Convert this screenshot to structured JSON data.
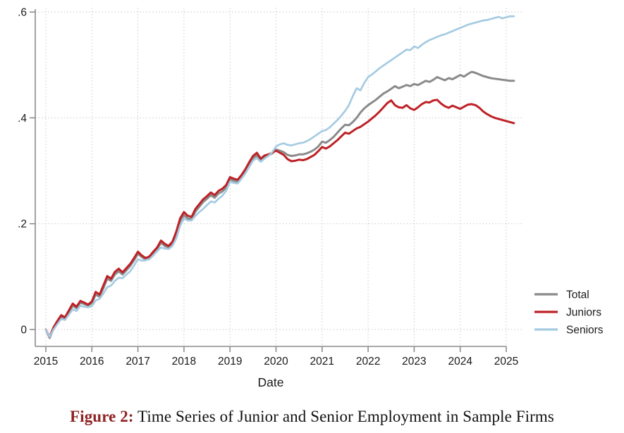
{
  "figure": {
    "caption_label": "Figure 2:",
    "caption_text": " Time Series of Junior and Senior Employment in Sample Firms"
  },
  "colors": {
    "total_line": "#8a8a8a",
    "juniors_line": "#be2126",
    "seniors_line": "#a5cbe2",
    "axis": "#8c8c8c",
    "gridline": "#c9c9c9",
    "tick_label": "#1a1a1a",
    "caption_label": "#8e2424",
    "caption_text": "#131313",
    "background": "#ffffff"
  },
  "chart_data": {
    "type": "line",
    "title": "",
    "xlabel": "Date",
    "ylabel": "",
    "x_start_year": 2015,
    "x_frequency": "monthly",
    "x_end": "2025-03",
    "xlim": [
      2015,
      2025.4
    ],
    "ylim": [
      -0.02,
      0.62
    ],
    "grid": "dotted gridlines at every x and y tick",
    "legend_position": "outside right, lower area, no frame",
    "x_ticks": [
      2015,
      2016,
      2017,
      2018,
      2019,
      2020,
      2021,
      2022,
      2023,
      2024,
      2025
    ],
    "x_tick_labels": [
      "2015",
      "2016",
      "2017",
      "2018",
      "2019",
      "2020",
      "2021",
      "2022",
      "2023",
      "2024",
      "2025"
    ],
    "y_ticks": [
      {
        "value": 0.0,
        "label": "0"
      },
      {
        "value": 0.2,
        "label": ".2"
      },
      {
        "value": 0.4,
        "label": ".4"
      },
      {
        "value": 0.6,
        "label": ".6"
      }
    ],
    "series": [
      {
        "name": "Total",
        "color": "#8a8a8a",
        "stroke_width": 3,
        "values": [
          0.0,
          -0.016,
          0.001,
          0.013,
          0.024,
          0.021,
          0.033,
          0.045,
          0.04,
          0.051,
          0.048,
          0.045,
          0.05,
          0.066,
          0.062,
          0.078,
          0.096,
          0.092,
          0.104,
          0.11,
          0.104,
          0.112,
          0.12,
          0.131,
          0.143,
          0.137,
          0.132,
          0.135,
          0.144,
          0.152,
          0.164,
          0.158,
          0.155,
          0.162,
          0.18,
          0.205,
          0.216,
          0.21,
          0.209,
          0.223,
          0.232,
          0.241,
          0.247,
          0.254,
          0.249,
          0.257,
          0.261,
          0.268,
          0.284,
          0.281,
          0.279,
          0.288,
          0.298,
          0.311,
          0.324,
          0.329,
          0.32,
          0.326,
          0.329,
          0.333,
          0.34,
          0.338,
          0.335,
          0.33,
          0.328,
          0.329,
          0.331,
          0.331,
          0.333,
          0.336,
          0.34,
          0.346,
          0.355,
          0.353,
          0.358,
          0.364,
          0.372,
          0.38,
          0.387,
          0.386,
          0.392,
          0.4,
          0.41,
          0.418,
          0.424,
          0.429,
          0.434,
          0.44,
          0.446,
          0.45,
          0.455,
          0.46,
          0.456,
          0.459,
          0.462,
          0.46,
          0.464,
          0.462,
          0.466,
          0.47,
          0.468,
          0.472,
          0.477,
          0.474,
          0.471,
          0.475,
          0.473,
          0.477,
          0.481,
          0.478,
          0.483,
          0.487,
          0.485,
          0.482,
          0.479,
          0.477,
          0.475,
          0.474,
          0.473,
          0.472,
          0.471,
          0.47,
          0.47
        ]
      },
      {
        "name": "Juniors",
        "color": "#be2126",
        "stroke_width": 3,
        "values": [
          0.0,
          -0.014,
          0.004,
          0.016,
          0.027,
          0.023,
          0.036,
          0.049,
          0.043,
          0.054,
          0.051,
          0.047,
          0.053,
          0.071,
          0.066,
          0.083,
          0.101,
          0.096,
          0.109,
          0.115,
          0.108,
          0.116,
          0.124,
          0.135,
          0.147,
          0.14,
          0.135,
          0.138,
          0.147,
          0.155,
          0.168,
          0.162,
          0.158,
          0.166,
          0.185,
          0.21,
          0.222,
          0.215,
          0.213,
          0.228,
          0.237,
          0.246,
          0.252,
          0.259,
          0.254,
          0.262,
          0.266,
          0.273,
          0.288,
          0.285,
          0.283,
          0.292,
          0.303,
          0.316,
          0.328,
          0.334,
          0.323,
          0.329,
          0.331,
          0.334,
          0.338,
          0.334,
          0.33,
          0.322,
          0.318,
          0.319,
          0.321,
          0.32,
          0.322,
          0.326,
          0.33,
          0.337,
          0.345,
          0.342,
          0.346,
          0.352,
          0.358,
          0.365,
          0.372,
          0.37,
          0.375,
          0.38,
          0.383,
          0.388,
          0.393,
          0.399,
          0.405,
          0.412,
          0.42,
          0.428,
          0.433,
          0.424,
          0.42,
          0.419,
          0.424,
          0.418,
          0.415,
          0.42,
          0.426,
          0.43,
          0.429,
          0.433,
          0.434,
          0.427,
          0.422,
          0.419,
          0.423,
          0.42,
          0.417,
          0.421,
          0.425,
          0.426,
          0.424,
          0.419,
          0.412,
          0.407,
          0.403,
          0.4,
          0.398,
          0.396,
          0.394,
          0.392,
          0.39
        ]
      },
      {
        "name": "Seniors",
        "color": "#a5cbe2",
        "stroke_width": 2.7,
        "values": [
          0.0,
          -0.014,
          0.0,
          0.01,
          0.02,
          0.018,
          0.028,
          0.038,
          0.035,
          0.045,
          0.043,
          0.042,
          0.044,
          0.055,
          0.058,
          0.068,
          0.08,
          0.083,
          0.092,
          0.098,
          0.097,
          0.104,
          0.11,
          0.121,
          0.133,
          0.13,
          0.131,
          0.133,
          0.14,
          0.148,
          0.155,
          0.153,
          0.152,
          0.158,
          0.172,
          0.196,
          0.21,
          0.206,
          0.206,
          0.215,
          0.222,
          0.228,
          0.235,
          0.242,
          0.24,
          0.247,
          0.253,
          0.262,
          0.279,
          0.277,
          0.276,
          0.285,
          0.295,
          0.307,
          0.319,
          0.324,
          0.317,
          0.323,
          0.328,
          0.335,
          0.346,
          0.35,
          0.352,
          0.349,
          0.348,
          0.35,
          0.352,
          0.353,
          0.356,
          0.36,
          0.365,
          0.37,
          0.375,
          0.377,
          0.382,
          0.389,
          0.396,
          0.404,
          0.413,
          0.424,
          0.441,
          0.456,
          0.452,
          0.466,
          0.477,
          0.482,
          0.488,
          0.494,
          0.499,
          0.504,
          0.509,
          0.514,
          0.519,
          0.524,
          0.529,
          0.528,
          0.535,
          0.532,
          0.538,
          0.543,
          0.547,
          0.55,
          0.553,
          0.556,
          0.558,
          0.561,
          0.564,
          0.567,
          0.57,
          0.573,
          0.576,
          0.578,
          0.58,
          0.582,
          0.584,
          0.585,
          0.587,
          0.589,
          0.591,
          0.588,
          0.59,
          0.592,
          0.592
        ]
      }
    ]
  }
}
